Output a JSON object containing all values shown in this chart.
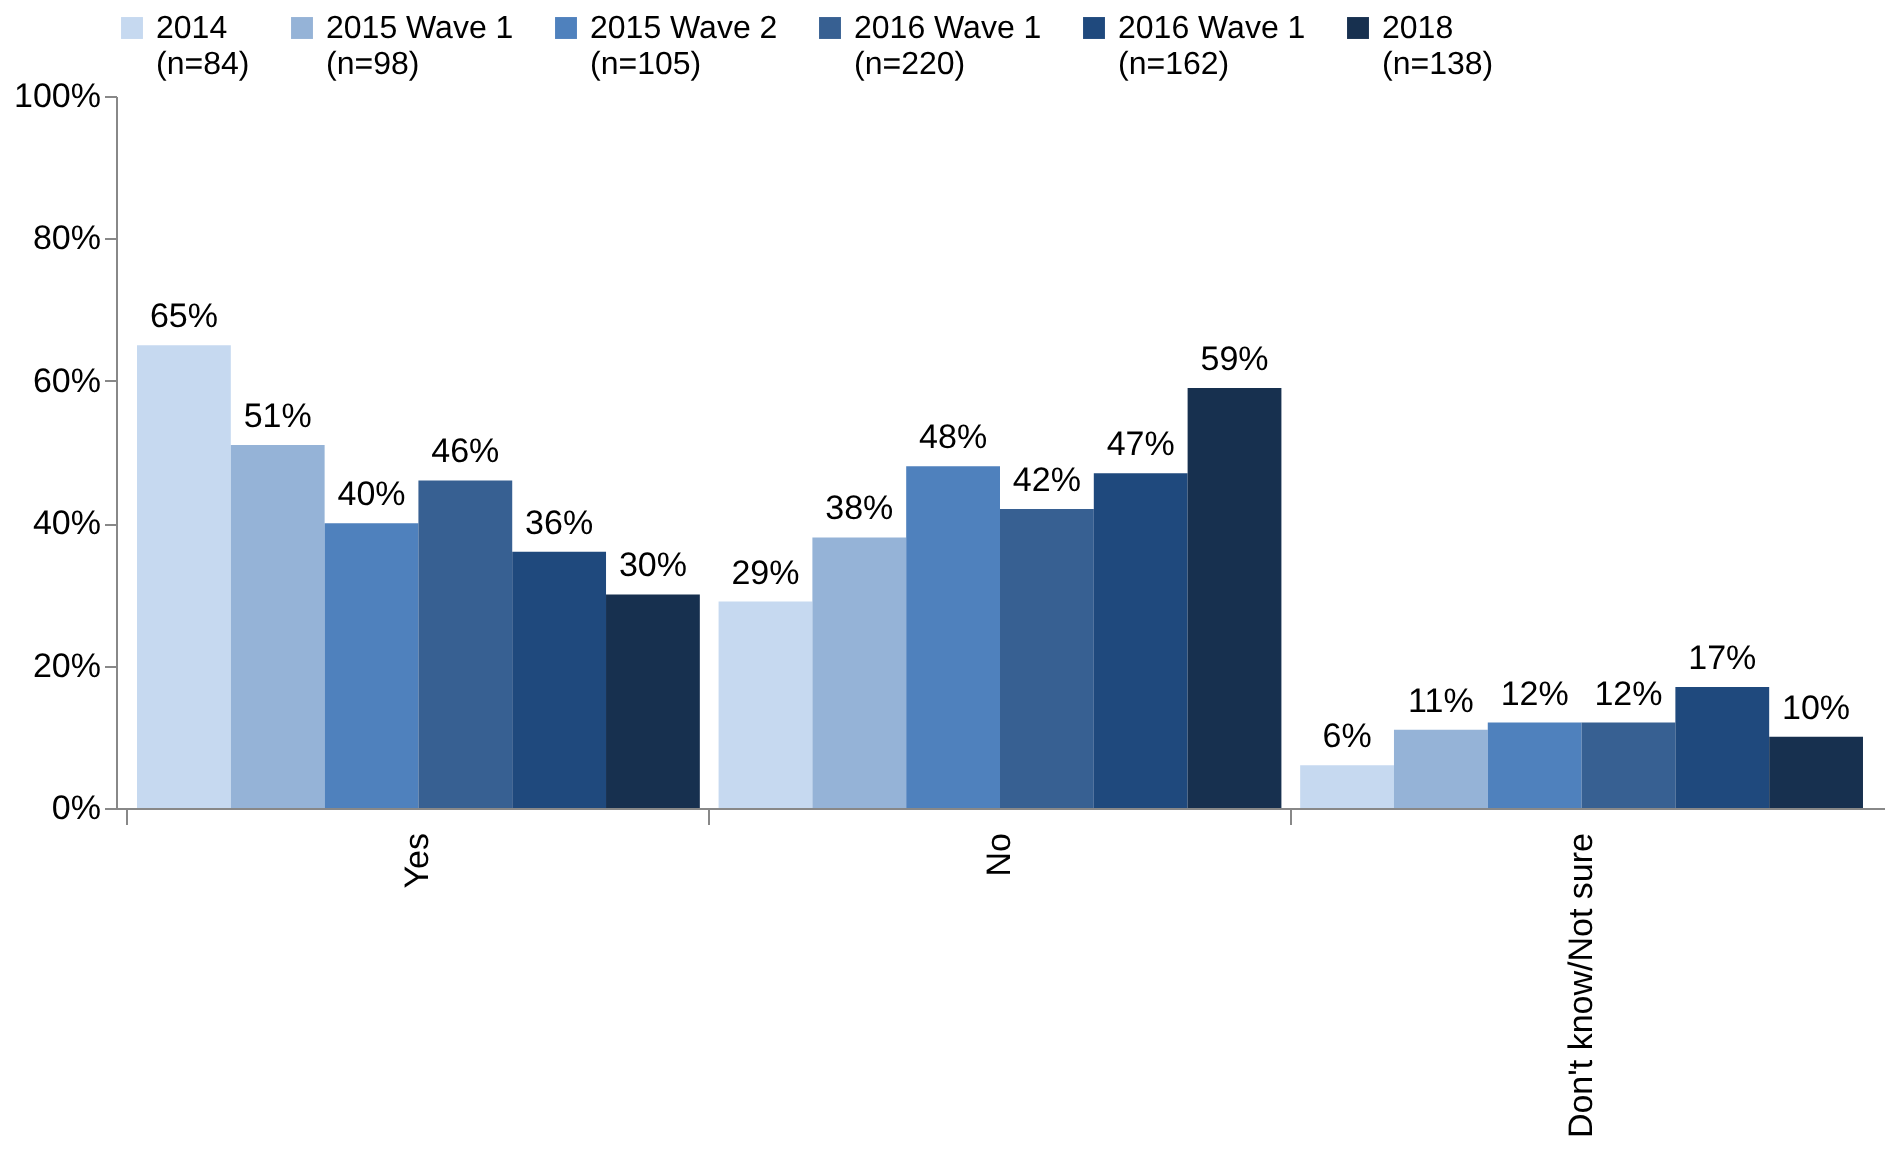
{
  "chart_data": {
    "type": "bar",
    "categories": [
      "Yes",
      "No",
      "Don't know/Not sure"
    ],
    "series": [
      {
        "name": "2014 (n=84)",
        "color": "#c6d9f0",
        "values": [
          65,
          29,
          6
        ]
      },
      {
        "name": "2015 Wave 1 (n=98)",
        "color": "#95b3d7",
        "values": [
          51,
          38,
          11
        ]
      },
      {
        "name": "2015 Wave 2 (n=105)",
        "color": "#4f81bd",
        "values": [
          40,
          48,
          12
        ]
      },
      {
        "name": "2016 Wave 1 (n=220)",
        "color": "#376092",
        "values": [
          46,
          42,
          12
        ]
      },
      {
        "name": "2016 Wave 1 (n=162)",
        "color": "#1f497d",
        "values": [
          36,
          47,
          17
        ]
      },
      {
        "name": "2018 (n=138)",
        "color": "#17304f",
        "values": [
          30,
          59,
          10
        ]
      }
    ],
    "ylim": [
      0,
      100
    ],
    "yticks": [
      {
        "value": 0,
        "label": "0%"
      },
      {
        "value": 20,
        "label": "20%"
      },
      {
        "value": 40,
        "label": "40%"
      },
      {
        "value": 60,
        "label": "60%"
      },
      {
        "value": 80,
        "label": "80%"
      },
      {
        "value": 100,
        "label": "100%"
      }
    ],
    "value_labels": [
      [
        "65%",
        "29%",
        "6%"
      ],
      [
        "51%",
        "38%",
        "11%"
      ],
      [
        "40%",
        "48%",
        "12%"
      ],
      [
        "46%",
        "42%",
        "12%"
      ],
      [
        "36%",
        "47%",
        "17%"
      ],
      [
        "30%",
        "59%",
        "10%"
      ]
    ],
    "grid": false,
    "legend": "top"
  }
}
